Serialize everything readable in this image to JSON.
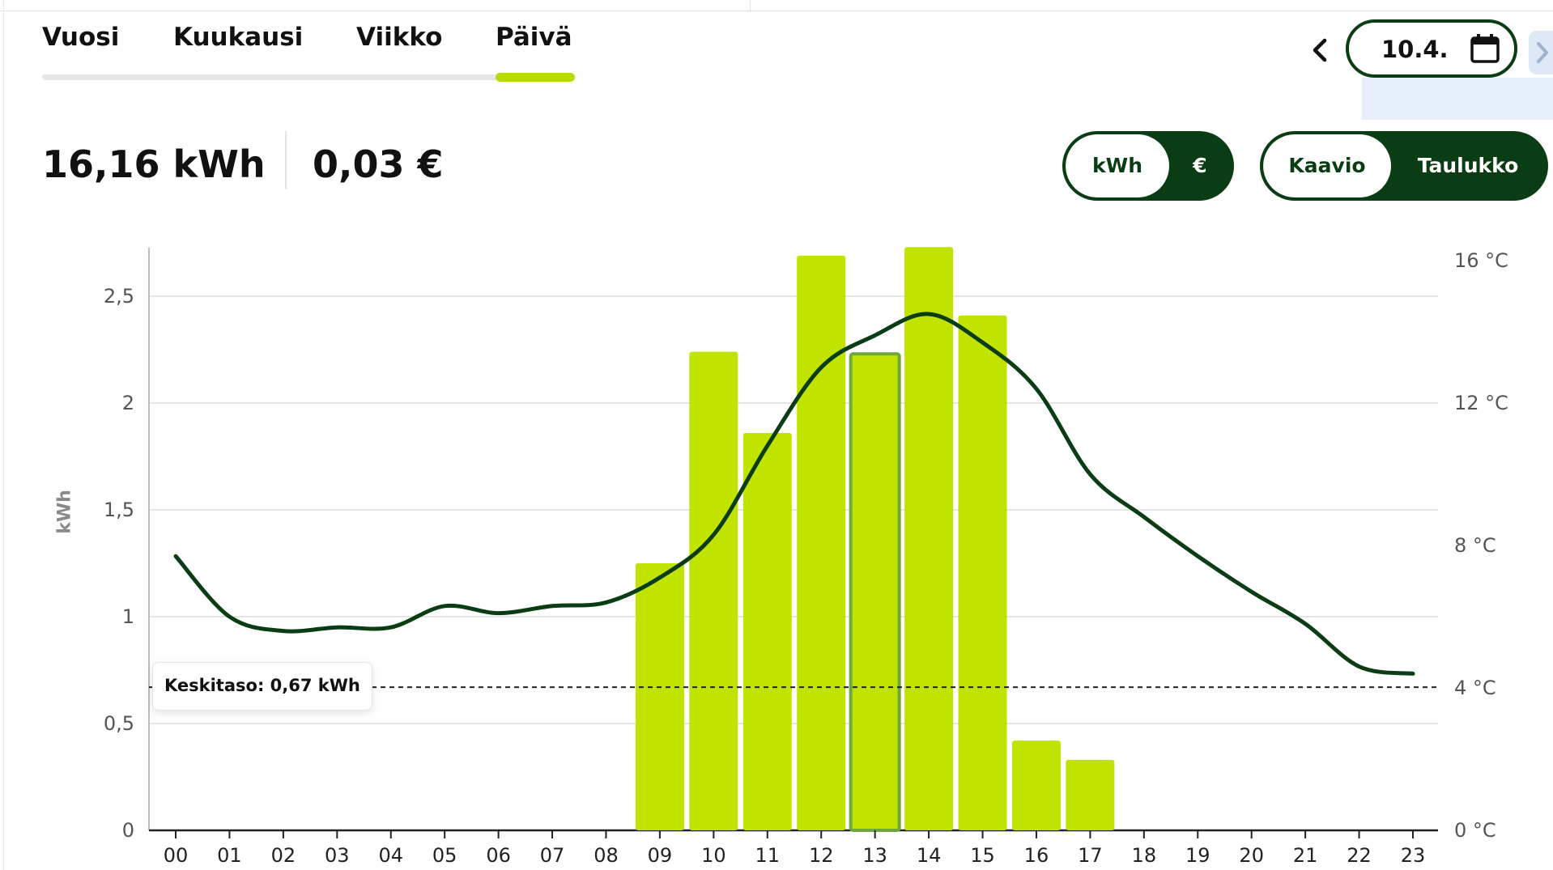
{
  "tabs": [
    {
      "label": "Vuosi",
      "active": false
    },
    {
      "label": "Kuukausi",
      "active": false
    },
    {
      "label": "Viikko",
      "active": false
    },
    {
      "label": "Päivä",
      "active": true
    }
  ],
  "date": {
    "label": "10.4."
  },
  "icons": {
    "prev": "chevron-left-icon",
    "calendar": "calendar-icon",
    "next": "chevron-right-icon"
  },
  "summary": {
    "energy": "16,16 kWh",
    "cost": "0,03 €"
  },
  "unit_toggle": {
    "options": [
      "kWh",
      "€"
    ],
    "selected": "kWh"
  },
  "view_toggle": {
    "options": [
      "Kaavio",
      "Taulukko"
    ],
    "selected": "Kaavio"
  },
  "colors": {
    "bar": "#c0e400",
    "bar_selected_border": "#6fa83a",
    "line": "#0b3d14",
    "accent": "#b8dc00"
  },
  "chart_data": {
    "type": "bar",
    "categories": [
      "00",
      "01",
      "02",
      "03",
      "04",
      "05",
      "06",
      "07",
      "08",
      "09",
      "10",
      "11",
      "12",
      "13",
      "14",
      "15",
      "16",
      "17",
      "18",
      "19",
      "20",
      "21",
      "22",
      "23"
    ],
    "series": [
      {
        "values": [
          0,
          0,
          0,
          0,
          0,
          0,
          0,
          0,
          0,
          1.25,
          2.24,
          1.86,
          2.69,
          2.23,
          2.73,
          2.41,
          0.42,
          0.33,
          0,
          0,
          0,
          0,
          0,
          0
        ],
        "unit": "kWh"
      },
      {
        "type": "line",
        "values": [
          7.7,
          6.0,
          5.6,
          5.7,
          5.7,
          6.3,
          6.1,
          6.3,
          6.4,
          7.1,
          8.3,
          10.8,
          13.0,
          13.9,
          14.5,
          13.7,
          12.4,
          10.0,
          8.8,
          7.7,
          6.7,
          5.8,
          4.6,
          4.4
        ],
        "unit": "°C"
      }
    ],
    "selected_category": "13",
    "ylabel": "kWh",
    "y_ticks": [
      "0",
      "0,5",
      "1",
      "1,5",
      "2",
      "2,5"
    ],
    "ylim": [
      0,
      2.7
    ],
    "y2_ticks": [
      "0 °C",
      "4 °C",
      "8 °C",
      "12 °C",
      "16 °C"
    ],
    "y2lim": [
      0,
      16
    ],
    "average": {
      "value": 0.67,
      "label": "Keskitaso: 0,67 kWh"
    },
    "grid": true
  }
}
